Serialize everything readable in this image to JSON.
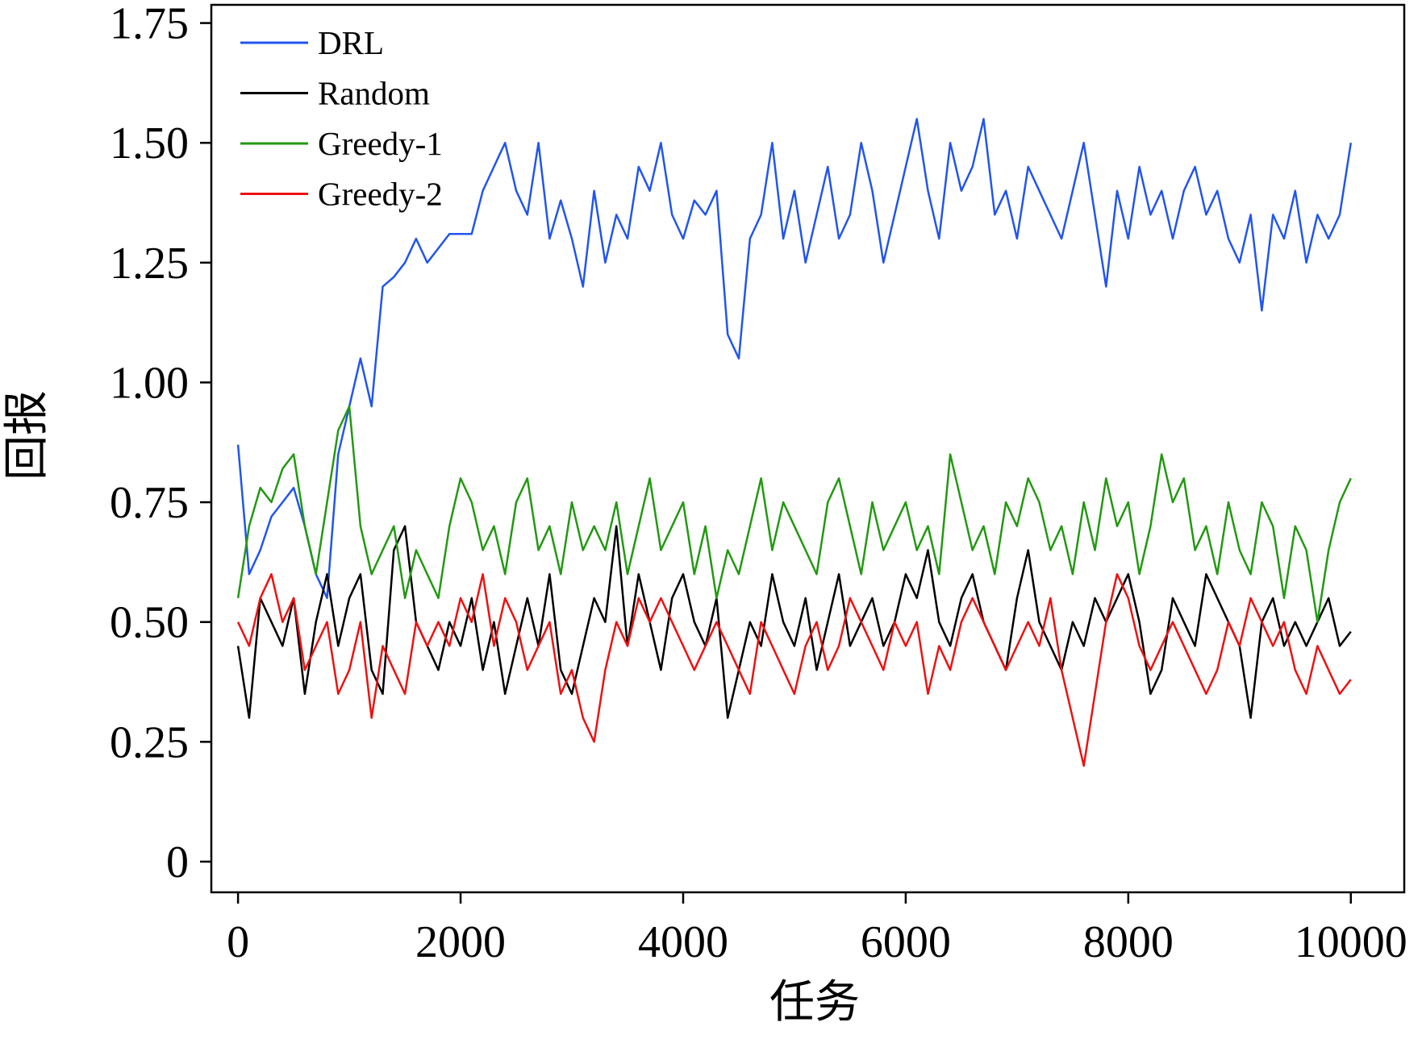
{
  "chart_data": {
    "type": "line",
    "xlabel": "任务",
    "ylabel": "回报",
    "x": [
      0,
      100,
      200,
      300,
      400,
      500,
      600,
      700,
      800,
      900,
      1000,
      1100,
      1200,
      1300,
      1400,
      1500,
      1600,
      1700,
      1800,
      1900,
      2000,
      2100,
      2200,
      2300,
      2400,
      2500,
      2600,
      2700,
      2800,
      2900,
      3000,
      3100,
      3200,
      3300,
      3400,
      3500,
      3600,
      3700,
      3800,
      3900,
      4000,
      4100,
      4200,
      4300,
      4400,
      4500,
      4600,
      4700,
      4800,
      4900,
      5000,
      5100,
      5200,
      5300,
      5400,
      5500,
      5600,
      5700,
      5800,
      5900,
      6000,
      6100,
      6200,
      6300,
      6400,
      6500,
      6600,
      6700,
      6800,
      6900,
      7000,
      7100,
      7200,
      7300,
      7400,
      7500,
      7600,
      7700,
      7800,
      7900,
      8000,
      8100,
      8200,
      8300,
      8400,
      8500,
      8600,
      8700,
      8800,
      8900,
      9000,
      9100,
      9200,
      9300,
      9400,
      9500,
      9600,
      9700,
      9800,
      9900,
      10000
    ],
    "series": [
      {
        "name": "DRL",
        "color": "#2255ee",
        "values": [
          0.87,
          0.6,
          0.65,
          0.72,
          0.75,
          0.78,
          0.7,
          0.6,
          0.55,
          0.85,
          0.95,
          1.05,
          0.95,
          1.2,
          1.22,
          1.25,
          1.3,
          1.25,
          1.28,
          1.31,
          1.31,
          1.31,
          1.4,
          1.45,
          1.5,
          1.4,
          1.35,
          1.5,
          1.3,
          1.38,
          1.3,
          1.2,
          1.4,
          1.25,
          1.35,
          1.3,
          1.45,
          1.4,
          1.5,
          1.35,
          1.3,
          1.38,
          1.35,
          1.4,
          1.1,
          1.05,
          1.3,
          1.35,
          1.5,
          1.3,
          1.4,
          1.25,
          1.35,
          1.45,
          1.3,
          1.35,
          1.5,
          1.4,
          1.25,
          1.35,
          1.45,
          1.55,
          1.4,
          1.3,
          1.5,
          1.4,
          1.45,
          1.55,
          1.35,
          1.4,
          1.3,
          1.45,
          1.4,
          1.35,
          1.3,
          1.4,
          1.5,
          1.35,
          1.2,
          1.4,
          1.3,
          1.45,
          1.35,
          1.4,
          1.3,
          1.4,
          1.45,
          1.35,
          1.4,
          1.3,
          1.25,
          1.35,
          1.15,
          1.35,
          1.3,
          1.4,
          1.25,
          1.35,
          1.3,
          1.35,
          1.5
        ]
      },
      {
        "name": "Random",
        "color": "#000000",
        "values": [
          0.45,
          0.3,
          0.55,
          0.5,
          0.45,
          0.55,
          0.35,
          0.5,
          0.6,
          0.45,
          0.55,
          0.6,
          0.4,
          0.35,
          0.65,
          0.7,
          0.5,
          0.45,
          0.4,
          0.5,
          0.45,
          0.55,
          0.4,
          0.5,
          0.35,
          0.45,
          0.55,
          0.45,
          0.6,
          0.4,
          0.35,
          0.45,
          0.55,
          0.5,
          0.7,
          0.45,
          0.6,
          0.5,
          0.4,
          0.55,
          0.6,
          0.5,
          0.45,
          0.55,
          0.3,
          0.4,
          0.5,
          0.45,
          0.6,
          0.5,
          0.45,
          0.55,
          0.4,
          0.5,
          0.6,
          0.45,
          0.5,
          0.55,
          0.45,
          0.5,
          0.6,
          0.55,
          0.65,
          0.5,
          0.45,
          0.55,
          0.6,
          0.5,
          0.45,
          0.4,
          0.55,
          0.65,
          0.5,
          0.45,
          0.4,
          0.5,
          0.45,
          0.55,
          0.5,
          0.55,
          0.6,
          0.5,
          0.35,
          0.4,
          0.55,
          0.5,
          0.45,
          0.6,
          0.55,
          0.5,
          0.45,
          0.3,
          0.5,
          0.55,
          0.45,
          0.5,
          0.45,
          0.5,
          0.55,
          0.45,
          0.48
        ]
      },
      {
        "name": "Greedy-1",
        "color": "#229911",
        "values": [
          0.55,
          0.7,
          0.78,
          0.75,
          0.82,
          0.85,
          0.7,
          0.6,
          0.75,
          0.9,
          0.95,
          0.7,
          0.6,
          0.65,
          0.7,
          0.55,
          0.65,
          0.6,
          0.55,
          0.7,
          0.8,
          0.75,
          0.65,
          0.7,
          0.6,
          0.75,
          0.8,
          0.65,
          0.7,
          0.6,
          0.75,
          0.65,
          0.7,
          0.65,
          0.75,
          0.6,
          0.7,
          0.8,
          0.65,
          0.7,
          0.75,
          0.6,
          0.7,
          0.55,
          0.65,
          0.6,
          0.7,
          0.8,
          0.65,
          0.75,
          0.7,
          0.65,
          0.6,
          0.75,
          0.8,
          0.7,
          0.6,
          0.75,
          0.65,
          0.7,
          0.75,
          0.65,
          0.7,
          0.6,
          0.85,
          0.75,
          0.65,
          0.7,
          0.6,
          0.75,
          0.7,
          0.8,
          0.75,
          0.65,
          0.7,
          0.6,
          0.75,
          0.65,
          0.8,
          0.7,
          0.75,
          0.6,
          0.7,
          0.85,
          0.75,
          0.8,
          0.65,
          0.7,
          0.6,
          0.75,
          0.65,
          0.6,
          0.75,
          0.7,
          0.55,
          0.7,
          0.65,
          0.5,
          0.65,
          0.75,
          0.8
        ]
      },
      {
        "name": "Greedy-2",
        "color": "#ee1111",
        "values": [
          0.5,
          0.45,
          0.55,
          0.6,
          0.5,
          0.55,
          0.4,
          0.45,
          0.5,
          0.35,
          0.4,
          0.5,
          0.3,
          0.45,
          0.4,
          0.35,
          0.5,
          0.45,
          0.5,
          0.45,
          0.55,
          0.5,
          0.6,
          0.45,
          0.55,
          0.5,
          0.4,
          0.45,
          0.5,
          0.35,
          0.4,
          0.3,
          0.25,
          0.4,
          0.5,
          0.45,
          0.55,
          0.5,
          0.55,
          0.5,
          0.45,
          0.4,
          0.45,
          0.5,
          0.45,
          0.4,
          0.35,
          0.5,
          0.45,
          0.4,
          0.35,
          0.45,
          0.5,
          0.4,
          0.45,
          0.55,
          0.5,
          0.45,
          0.4,
          0.5,
          0.45,
          0.5,
          0.35,
          0.45,
          0.4,
          0.5,
          0.55,
          0.5,
          0.45,
          0.4,
          0.45,
          0.5,
          0.45,
          0.55,
          0.4,
          0.3,
          0.2,
          0.35,
          0.5,
          0.6,
          0.55,
          0.45,
          0.4,
          0.45,
          0.5,
          0.45,
          0.4,
          0.35,
          0.4,
          0.5,
          0.45,
          0.55,
          0.5,
          0.45,
          0.5,
          0.4,
          0.35,
          0.45,
          0.4,
          0.35,
          0.38
        ]
      }
    ],
    "xlim": [
      -240,
      10480
    ],
    "xticks": [
      0,
      2000,
      4000,
      6000,
      8000,
      10000
    ],
    "ylim": [
      -0.064,
      1.788
    ],
    "yticks": [
      0,
      0.25,
      {
        "value": 0.5,
        "label": "0.50"
      },
      0.75,
      {
        "value": 1,
        "label": "1.00"
      },
      1.25,
      {
        "value": 1.5,
        "label": "1.50"
      },
      1.75
    ],
    "legend": "upper left"
  }
}
